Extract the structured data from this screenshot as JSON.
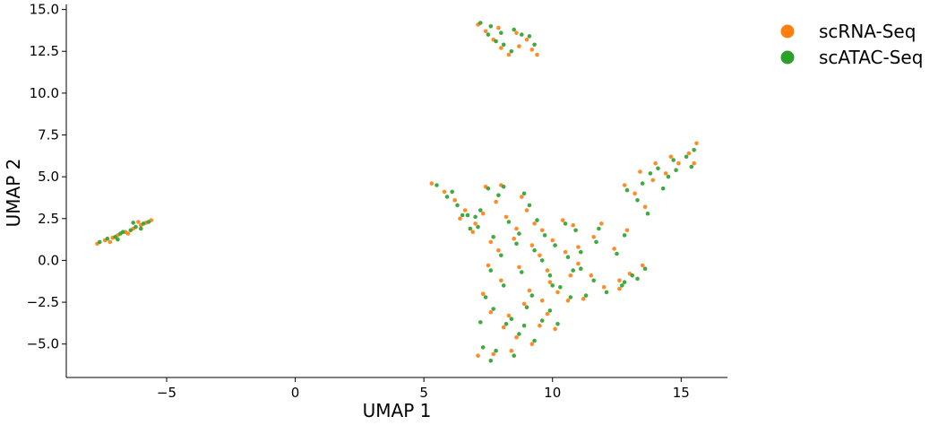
{
  "chart_data": {
    "type": "scatter",
    "xlabel": "UMAP 1",
    "ylabel": "UMAP 2",
    "xlim": [
      -8.9,
      16.8
    ],
    "ylim": [
      -7.0,
      15.3
    ],
    "x_ticks": [
      -5,
      0,
      5,
      10,
      15
    ],
    "x_tick_labels": [
      "−5",
      "0",
      "5",
      "10",
      "15"
    ],
    "y_ticks": [
      -5.0,
      -2.5,
      0.0,
      2.5,
      5.0,
      7.5,
      10.0,
      12.5,
      15.0
    ],
    "y_tick_labels": [
      "−5.0",
      "−2.5",
      "0.0",
      "2.5",
      "5.0",
      "7.5",
      "10.0",
      "12.5",
      "15.0"
    ],
    "grid": false,
    "legend_position": "top-right outside",
    "series": [
      {
        "name": "scRNA-Seq",
        "color": "#ff7f0e",
        "points": [
          [
            -7.7,
            1.0
          ],
          [
            -7.4,
            1.2
          ],
          [
            -7.1,
            1.35
          ],
          [
            -6.9,
            1.5
          ],
          [
            -6.6,
            1.7
          ],
          [
            -6.3,
            1.9
          ],
          [
            -6.0,
            2.1
          ],
          [
            -5.8,
            2.25
          ],
          [
            -5.6,
            2.4
          ],
          [
            -7.2,
            1.1
          ],
          [
            -6.5,
            1.6
          ],
          [
            -6.1,
            2.3
          ],
          [
            7.1,
            14.1
          ],
          [
            7.4,
            13.7
          ],
          [
            7.7,
            13.2
          ],
          [
            8.0,
            12.7
          ],
          [
            8.3,
            12.3
          ],
          [
            8.6,
            13.6
          ],
          [
            9.0,
            13.2
          ],
          [
            9.4,
            12.3
          ],
          [
            7.9,
            13.9
          ],
          [
            8.7,
            12.8
          ],
          [
            9.2,
            12.6
          ],
          [
            5.3,
            4.6
          ],
          [
            5.8,
            4.1
          ],
          [
            6.2,
            3.6
          ],
          [
            6.6,
            3.0
          ],
          [
            7.0,
            2.2
          ],
          [
            7.4,
            4.4
          ],
          [
            7.8,
            3.5
          ],
          [
            8.2,
            2.6
          ],
          [
            8.6,
            1.9
          ],
          [
            9.0,
            3.0
          ],
          [
            7.6,
            1.1
          ],
          [
            6.9,
            1.7
          ],
          [
            8.8,
            3.8
          ],
          [
            7.3,
            2.8
          ],
          [
            6.4,
            2.5
          ],
          [
            8.0,
            4.5
          ],
          [
            9.3,
            2.2
          ],
          [
            9.6,
            1.8
          ],
          [
            10.0,
            1.2
          ],
          [
            10.5,
            0.5
          ],
          [
            11.0,
            -0.2
          ],
          [
            11.5,
            -0.9
          ],
          [
            12.0,
            -1.6
          ],
          [
            10.2,
            -1.9
          ],
          [
            9.8,
            -0.6
          ],
          [
            10.8,
            2.1
          ],
          [
            11.6,
            1.4
          ],
          [
            12.4,
            0.7
          ],
          [
            11.2,
            -2.3
          ],
          [
            12.6,
            -1.2
          ],
          [
            10.4,
            2.4
          ],
          [
            9.5,
            0.3
          ],
          [
            11.9,
            2.2
          ],
          [
            12.9,
            1.8
          ],
          [
            11.0,
            0.8
          ],
          [
            9.9,
            -1.3
          ],
          [
            10.7,
            -0.9
          ],
          [
            12.8,
            4.5
          ],
          [
            13.2,
            4.0
          ],
          [
            13.6,
            3.2
          ],
          [
            14.0,
            5.8
          ],
          [
            14.4,
            5.2
          ],
          [
            14.9,
            5.8
          ],
          [
            15.3,
            6.4
          ],
          [
            15.6,
            7.0
          ],
          [
            13.9,
            4.8
          ],
          [
            14.6,
            6.2
          ],
          [
            15.5,
            5.8
          ],
          [
            13.4,
            5.3
          ],
          [
            13.0,
            -0.8
          ],
          [
            13.5,
            -0.3
          ],
          [
            12.6,
            -1.7
          ],
          [
            7.3,
            -2.0
          ],
          [
            7.6,
            -3.1
          ],
          [
            8.1,
            -4.0
          ],
          [
            8.6,
            -4.6
          ],
          [
            9.2,
            -5.0
          ],
          [
            7.7,
            -5.6
          ],
          [
            8.3,
            -3.3
          ],
          [
            8.9,
            -2.6
          ],
          [
            9.5,
            -3.9
          ],
          [
            10.1,
            -4.1
          ],
          [
            7.5,
            -0.3
          ],
          [
            8.0,
            -1.2
          ],
          [
            8.7,
            -0.4
          ],
          [
            9.1,
            -1.8
          ],
          [
            7.1,
            -5.7
          ],
          [
            8.4,
            -5.4
          ],
          [
            9.8,
            -3.2
          ],
          [
            10.6,
            -2.4
          ],
          [
            7.9,
            0.6
          ],
          [
            8.5,
            1.3
          ],
          [
            9.2,
            0.9
          ],
          [
            9.6,
            -2.4
          ]
        ]
      },
      {
        "name": "scATAC-Seq",
        "color": "#2ca02c",
        "points": [
          [
            -7.6,
            1.1
          ],
          [
            -7.3,
            1.3
          ],
          [
            -7.0,
            1.4
          ],
          [
            -6.8,
            1.6
          ],
          [
            -6.4,
            1.8
          ],
          [
            -6.2,
            2.0
          ],
          [
            -5.9,
            2.2
          ],
          [
            -5.7,
            2.3
          ],
          [
            -6.7,
            1.7
          ],
          [
            -6.0,
            1.9
          ],
          [
            -6.3,
            2.25
          ],
          [
            -6.9,
            1.25
          ],
          [
            7.2,
            14.2
          ],
          [
            7.5,
            13.5
          ],
          [
            7.8,
            13.1
          ],
          [
            8.1,
            12.9
          ],
          [
            8.4,
            12.5
          ],
          [
            8.8,
            13.5
          ],
          [
            9.1,
            13.4
          ],
          [
            9.3,
            12.9
          ],
          [
            7.6,
            14.0
          ],
          [
            8.5,
            13.8
          ],
          [
            8.0,
            13.6
          ],
          [
            5.5,
            4.5
          ],
          [
            5.9,
            3.8
          ],
          [
            6.3,
            3.3
          ],
          [
            6.7,
            2.7
          ],
          [
            7.1,
            2.0
          ],
          [
            7.5,
            4.3
          ],
          [
            7.9,
            3.9
          ],
          [
            8.3,
            2.3
          ],
          [
            8.7,
            1.6
          ],
          [
            9.1,
            3.3
          ],
          [
            7.7,
            1.4
          ],
          [
            6.8,
            1.9
          ],
          [
            8.9,
            4.0
          ],
          [
            7.2,
            3.0
          ],
          [
            6.5,
            2.7
          ],
          [
            8.1,
            4.4
          ],
          [
            9.4,
            2.4
          ],
          [
            6.1,
            4.1
          ],
          [
            7.0,
            2.6
          ],
          [
            9.7,
            1.5
          ],
          [
            10.1,
            0.9
          ],
          [
            10.6,
            0.2
          ],
          [
            11.1,
            -0.5
          ],
          [
            11.6,
            -1.2
          ],
          [
            12.1,
            -1.9
          ],
          [
            10.3,
            -1.6
          ],
          [
            9.9,
            -0.9
          ],
          [
            10.9,
            1.8
          ],
          [
            11.7,
            1.1
          ],
          [
            12.5,
            0.4
          ],
          [
            11.3,
            -2.1
          ],
          [
            12.7,
            -1.5
          ],
          [
            10.5,
            2.2
          ],
          [
            9.6,
            0.0
          ],
          [
            11.8,
            1.9
          ],
          [
            12.8,
            1.5
          ],
          [
            11.1,
            0.5
          ],
          [
            10.0,
            -1.5
          ],
          [
            10.8,
            -0.6
          ],
          [
            12.9,
            4.2
          ],
          [
            13.3,
            3.6
          ],
          [
            13.7,
            2.8
          ],
          [
            14.1,
            5.5
          ],
          [
            14.5,
            5.0
          ],
          [
            14.8,
            5.4
          ],
          [
            15.2,
            6.2
          ],
          [
            15.5,
            6.6
          ],
          [
            13.8,
            5.2
          ],
          [
            14.7,
            6.0
          ],
          [
            15.4,
            5.6
          ],
          [
            13.5,
            4.6
          ],
          [
            14.3,
            4.3
          ],
          [
            13.1,
            -0.9
          ],
          [
            13.6,
            -0.5
          ],
          [
            12.8,
            -1.3
          ],
          [
            13.3,
            -1.1
          ],
          [
            7.4,
            -2.2
          ],
          [
            7.7,
            -2.9
          ],
          [
            8.2,
            -3.8
          ],
          [
            8.7,
            -4.4
          ],
          [
            9.3,
            -4.8
          ],
          [
            7.8,
            -5.4
          ],
          [
            8.4,
            -3.5
          ],
          [
            9.0,
            -2.8
          ],
          [
            9.6,
            -3.6
          ],
          [
            10.2,
            -3.8
          ],
          [
            7.6,
            -0.6
          ],
          [
            8.1,
            -1.5
          ],
          [
            8.8,
            -0.7
          ],
          [
            9.2,
            -2.1
          ],
          [
            7.3,
            -5.2
          ],
          [
            8.5,
            -5.7
          ],
          [
            9.9,
            -3.0
          ],
          [
            10.7,
            -2.2
          ],
          [
            8.0,
            0.3
          ],
          [
            8.6,
            1.0
          ],
          [
            9.3,
            0.6
          ],
          [
            7.6,
            -6.0
          ],
          [
            8.9,
            -3.9
          ],
          [
            7.2,
            -3.7
          ]
        ]
      }
    ]
  }
}
